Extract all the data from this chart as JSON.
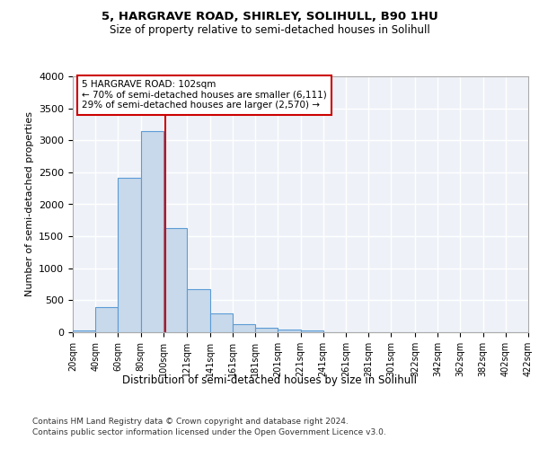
{
  "title1": "5, HARGRAVE ROAD, SHIRLEY, SOLIHULL, B90 1HU",
  "title2": "Size of property relative to semi-detached houses in Solihull",
  "xlabel": "Distribution of semi-detached houses by size in Solihull",
  "ylabel": "Number of semi-detached properties",
  "footnote1": "Contains HM Land Registry data © Crown copyright and database right 2024.",
  "footnote2": "Contains public sector information licensed under the Open Government Licence v3.0.",
  "annotation_title": "5 HARGRAVE ROAD: 102sqm",
  "annotation_line1": "← 70% of semi-detached houses are smaller (6,111)",
  "annotation_line2": "29% of semi-detached houses are larger (2,570) →",
  "property_size": 102,
  "bin_edges": [
    20,
    40,
    60,
    80,
    100,
    121,
    141,
    161,
    181,
    201,
    221,
    241,
    261,
    281,
    301,
    322,
    342,
    362,
    382,
    402,
    422
  ],
  "bar_heights": [
    30,
    400,
    2420,
    3150,
    1630,
    670,
    300,
    130,
    65,
    45,
    30,
    0,
    0,
    0,
    0,
    0,
    0,
    0,
    0,
    0
  ],
  "bar_color": "#c8d9eb",
  "bar_edge_color": "#5b9bd5",
  "vline_color": "#cc0000",
  "vline_x": 102,
  "ylim": [
    0,
    4000
  ],
  "yticks": [
    0,
    500,
    1000,
    1500,
    2000,
    2500,
    3000,
    3500,
    4000
  ],
  "background_color": "#ffffff",
  "plot_bg_color": "#eef2f8",
  "grid_color": "#ffffff",
  "annotation_box_color": "#ffffff",
  "annotation_box_edge": "#cc0000"
}
